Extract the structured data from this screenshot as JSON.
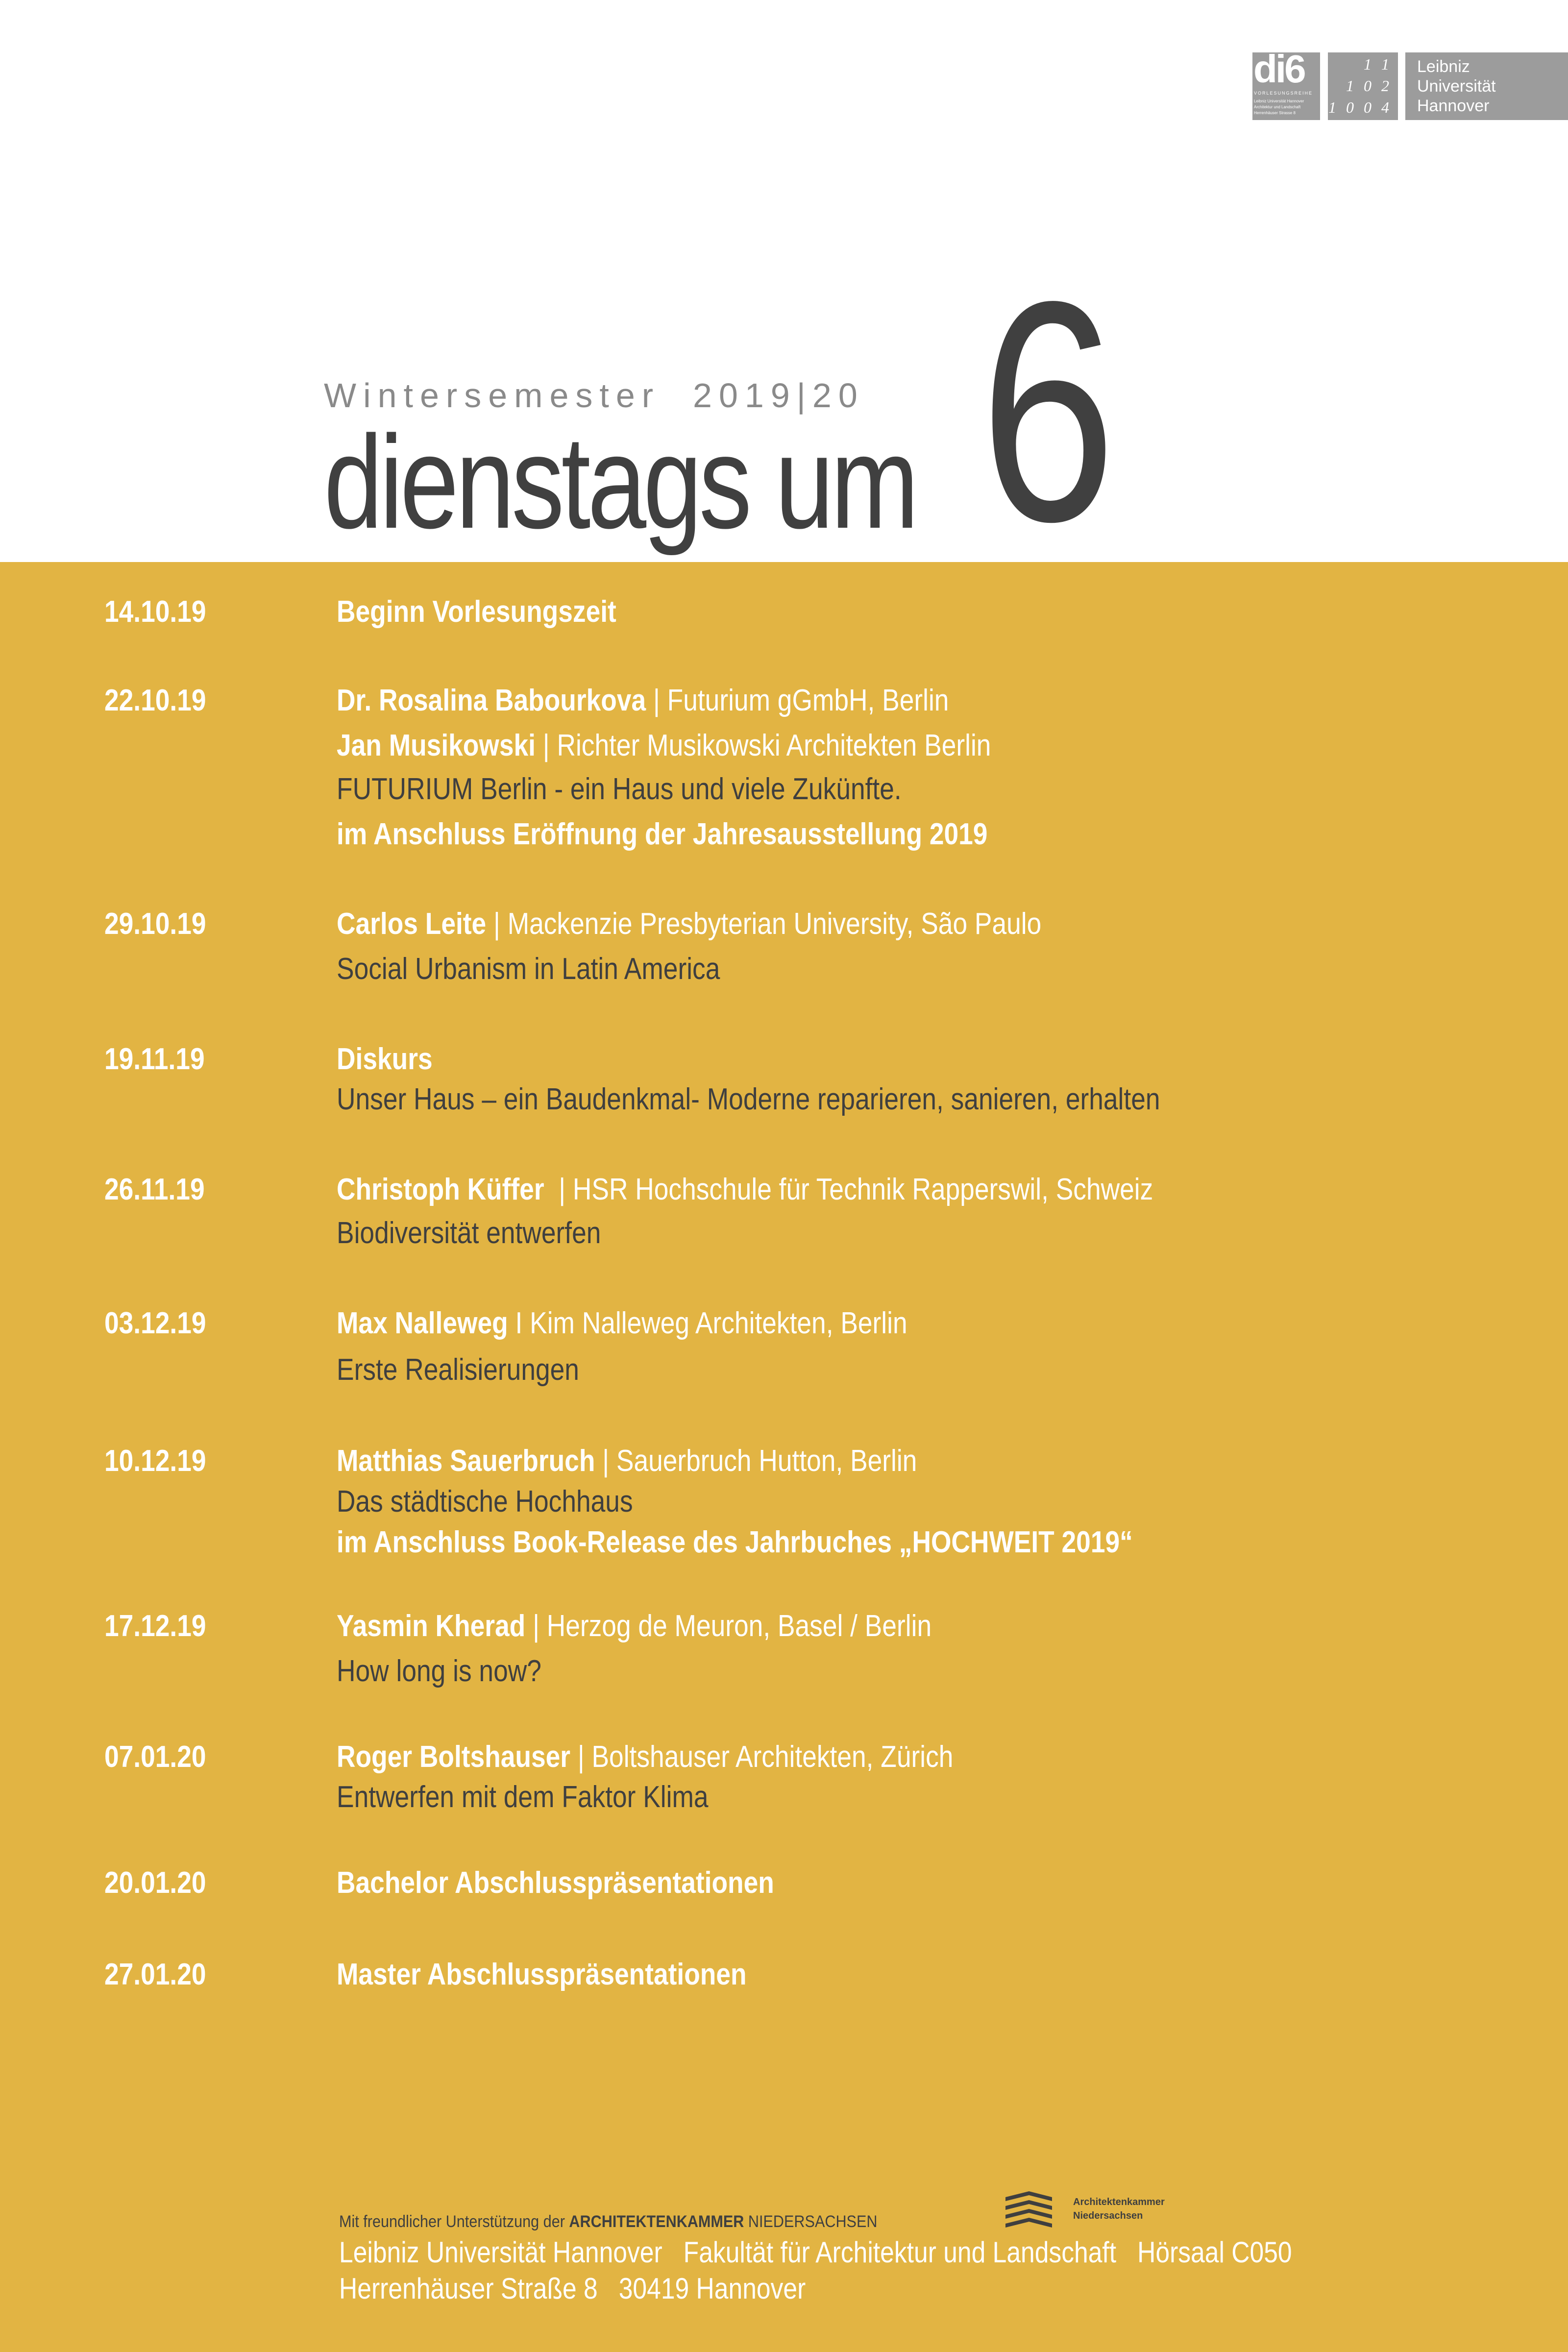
{
  "colors": {
    "band": "#e2b443",
    "dark": "#404040",
    "logo_gray": "#9c9c9c"
  },
  "logos": {
    "di6": {
      "big": "di6",
      "sub": "VORLESUNGSREIHE",
      "lines": [
        "Leibniz Universität Hannover",
        "Architektur und Landschaft",
        "Herrenhäuser Strasse 8"
      ]
    },
    "luh_mark": {
      "rows": [
        "1 1",
        "1 0 2",
        "1 0 0 4"
      ]
    },
    "luh": {
      "lines": [
        "Leibniz",
        "Universität",
        "Hannover"
      ]
    }
  },
  "header": {
    "semester": "Wintersemester",
    "year": "2019|20",
    "title": "dienstags um",
    "number": "6"
  },
  "events": [
    {
      "date": "14.10.19",
      "lines": [
        [
          {
            "t": "Beginn Vorlesungszeit",
            "s": "bold-white"
          }
        ]
      ]
    },
    {
      "date": "22.10.19",
      "lines": [
        [
          {
            "t": "Dr. Rosalina Babourkova",
            "s": "bold-white"
          },
          {
            "t": " | Futurium gGmbH, Berlin",
            "s": "white"
          }
        ],
        [
          {
            "t": "Jan Musikowski",
            "s": "bold-white"
          },
          {
            "t": " | Richter Musikowski Architekten Berlin",
            "s": "white"
          }
        ],
        [
          {
            "t": "FUTURIUM Berlin - ein Haus und viele Zukünfte.",
            "s": "dark"
          }
        ],
        [
          {
            "t": "im Anschluss Eröffnung der Jahresausstellung 2019",
            "s": "bold-white"
          }
        ]
      ]
    },
    {
      "date": "29.10.19",
      "lines": [
        [
          {
            "t": "Carlos Leite",
            "s": "bold-white"
          },
          {
            "t": " | Mackenzie Presbyterian University, São Paulo",
            "s": "white"
          }
        ],
        [
          {
            "t": "Social Urbanism in Latin America",
            "s": "dark"
          }
        ]
      ]
    },
    {
      "date": "19.11.19",
      "lines": [
        [
          {
            "t": "Diskurs",
            "s": "bold-white"
          }
        ],
        [
          {
            "t": "Unser Haus – ein Baudenkmal- Moderne reparieren, sanieren, erhalten",
            "s": "dark"
          }
        ]
      ]
    },
    {
      "date": "26.11.19",
      "lines": [
        [
          {
            "t": "Christoph Küffer",
            "s": "bold-white"
          },
          {
            "t": "  | HSR Hochschule für Technik Rapperswil, Schweiz",
            "s": "white"
          }
        ],
        [
          {
            "t": "Biodiversität entwerfen",
            "s": "dark"
          }
        ]
      ]
    },
    {
      "date": "03.12.19",
      "lines": [
        [
          {
            "t": "Max Nalleweg",
            "s": "bold-white"
          },
          {
            "t": " I Kim Nalleweg Architekten, Berlin",
            "s": "white"
          }
        ],
        [
          {
            "t": "Erste Realisierungen",
            "s": "dark"
          }
        ]
      ]
    },
    {
      "date": "10.12.19",
      "lines": [
        [
          {
            "t": "Matthias Sauerbruch",
            "s": "bold-white"
          },
          {
            "t": " | Sauerbruch Hutton, Berlin",
            "s": "white"
          }
        ],
        [
          {
            "t": "Das städtische Hochhaus",
            "s": "dark"
          }
        ],
        [
          {
            "t": "im Anschluss Book-Release des Jahrbuches „HOCHWEIT 2019“",
            "s": "bold-white"
          }
        ]
      ]
    },
    {
      "date": "17.12.19",
      "lines": [
        [
          {
            "t": "Yasmin Kherad",
            "s": "bold-white"
          },
          {
            "t": " | Herzog de Meuron, Basel / Berlin",
            "s": "white"
          }
        ],
        [
          {
            "t": "How long is now?",
            "s": "dark"
          }
        ]
      ]
    },
    {
      "date": "07.01.20",
      "lines": [
        [
          {
            "t": "Roger Boltshauser",
            "s": "bold-white"
          },
          {
            "t": " | Boltshauser Architekten, Zürich",
            "s": "white"
          }
        ],
        [
          {
            "t": "Entwerfen mit dem Faktor Klima",
            "s": "dark"
          }
        ]
      ]
    },
    {
      "date": "20.01.20",
      "lines": [
        [
          {
            "t": "Bachelor Abschlusspräsentationen",
            "s": "bold-white"
          }
        ]
      ]
    },
    {
      "date": "27.01.20",
      "lines": [
        [
          {
            "t": "Master Abschlusspräsentationen",
            "s": "bold-white"
          }
        ]
      ]
    }
  ],
  "footer": {
    "support_prefix": "Mit freundlicher Unterstützung der ",
    "support_bold": "ARCHITEKTENKAMMER",
    "support_suffix": " NIEDERSACHSEN",
    "ak_logo": [
      "Architektenkammer",
      "Niedersachsen"
    ],
    "line1": "Leibniz Universität Hannover   Fakultät für Architektur und Landschaft   Hörsaal C050",
    "line2": "Herrenhäuser Straße 8   30419 Hannover"
  }
}
